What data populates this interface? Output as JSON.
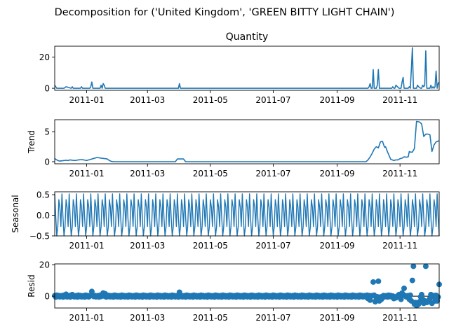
{
  "figure": {
    "suptitle": "Decomposition for ('United Kingdom', 'GREEN BITTY LIGHT CHAIN')",
    "line_color": "#1f77b4"
  },
  "chart_data": [
    {
      "type": "line",
      "title": "Quantity",
      "ylabel": "",
      "xlim": [
        "2010-12-01",
        "2011-12-09"
      ],
      "ylim": [
        -1.3,
        27.0
      ],
      "yticks": [
        0,
        20
      ],
      "xticks": [
        "2011-01",
        "2011-03",
        "2011-05",
        "2011-07",
        "2011-09",
        "2011-11"
      ],
      "series": [
        {
          "x": [
            "2010-12-01",
            "2010-12-03",
            "2010-12-10",
            "2010-12-12",
            "2010-12-17",
            "2010-12-18",
            "2010-12-19",
            "2010-12-26",
            "2010-12-27",
            "2010-12-28",
            "2011-01-04",
            "2011-01-05",
            "2011-01-06",
            "2011-01-07",
            "2011-01-08",
            "2011-01-09",
            "2011-01-14",
            "2011-01-15",
            "2011-01-16",
            "2011-01-17",
            "2011-01-18",
            "2011-01-19",
            "2011-03-31",
            "2011-04-01",
            "2011-04-02",
            "2011-10-01",
            "2011-10-02",
            "2011-10-03",
            "2011-10-04",
            "2011-10-05",
            "2011-10-06",
            "2011-10-07",
            "2011-10-08",
            "2011-10-09",
            "2011-10-10",
            "2011-10-11",
            "2011-10-12",
            "2011-10-14",
            "2011-10-16",
            "2011-10-21",
            "2011-10-24",
            "2011-10-25",
            "2011-10-26",
            "2011-10-27",
            "2011-10-28",
            "2011-10-31",
            "2011-11-01",
            "2011-11-02",
            "2011-11-03",
            "2011-11-04",
            "2011-11-05",
            "2011-11-09",
            "2011-11-10",
            "2011-11-11",
            "2011-11-12",
            "2011-11-13",
            "2011-11-14",
            "2011-11-15",
            "2011-11-16",
            "2011-11-17",
            "2011-11-18",
            "2011-11-19",
            "2011-11-21",
            "2011-11-22",
            "2011-11-23",
            "2011-11-24",
            "2011-11-25",
            "2011-11-26",
            "2011-11-27",
            "2011-11-28",
            "2011-11-29",
            "2011-11-30",
            "2011-12-01",
            "2011-12-02",
            "2011-12-03",
            "2011-12-04",
            "2011-12-05",
            "2011-12-06",
            "2011-12-07",
            "2011-12-08",
            "2011-12-09"
          ],
          "y": [
            2,
            0,
            0,
            1,
            0,
            1,
            0,
            0,
            1,
            0,
            0,
            1,
            4,
            0,
            0,
            0,
            0,
            2,
            0,
            3,
            2,
            0,
            0,
            3,
            0,
            0,
            1,
            3,
            0,
            0,
            12,
            0,
            0,
            0,
            2,
            12,
            0,
            0,
            0,
            0,
            0,
            1,
            0,
            0,
            2,
            0,
            0,
            0,
            4,
            7,
            0,
            0,
            1,
            0,
            12,
            26,
            0,
            0,
            0,
            0,
            2,
            1,
            0,
            0,
            2,
            1,
            2,
            24,
            0,
            0,
            0,
            0,
            2,
            0,
            1,
            0,
            1,
            11,
            0,
            3,
            4
          ]
        }
      ]
    },
    {
      "type": "line",
      "title": "",
      "ylabel": "Trend",
      "xlim": [
        "2010-12-01",
        "2011-12-09"
      ],
      "ylim": [
        -0.35,
        7.0
      ],
      "yticks": [
        0,
        5
      ],
      "xticks": [
        "2011-01",
        "2011-03",
        "2011-05",
        "2011-07",
        "2011-09",
        "2011-11"
      ],
      "series": [
        {
          "x": [
            "2010-12-01",
            "2010-12-02",
            "2010-12-04",
            "2010-12-06",
            "2010-12-08",
            "2010-12-10",
            "2010-12-12",
            "2010-12-14",
            "2010-12-16",
            "2010-12-18",
            "2010-12-21",
            "2010-12-24",
            "2010-12-27",
            "2010-12-29",
            "2011-01-01",
            "2011-01-03",
            "2011-01-04",
            "2011-01-08",
            "2011-01-11",
            "2011-01-13",
            "2011-01-15",
            "2011-01-17",
            "2011-01-19",
            "2011-01-21",
            "2011-01-23",
            "2011-01-25",
            "2011-01-27",
            "2011-01-29",
            "2011-03-28",
            "2011-03-30",
            "2011-04-03",
            "2011-04-05",
            "2011-04-07",
            "2011-09-29",
            "2011-10-01",
            "2011-10-03",
            "2011-10-05",
            "2011-10-07",
            "2011-10-09",
            "2011-10-11",
            "2011-10-13",
            "2011-10-15",
            "2011-10-17",
            "2011-10-18",
            "2011-10-20",
            "2011-10-23",
            "2011-10-26",
            "2011-10-28",
            "2011-10-30",
            "2011-11-01",
            "2011-11-03",
            "2011-11-05",
            "2011-11-07",
            "2011-11-09",
            "2011-11-10",
            "2011-11-11",
            "2011-11-13",
            "2011-11-15",
            "2011-11-17",
            "2011-11-18",
            "2011-11-20",
            "2011-11-22",
            "2011-11-24",
            "2011-11-26",
            "2011-11-27",
            "2011-11-28",
            "2011-11-30",
            "2011-12-02",
            "2011-12-04",
            "2011-12-06",
            "2011-12-09"
          ],
          "y": [
            0.55,
            0.4,
            0.2,
            0.1,
            0.15,
            0.2,
            0.25,
            0.2,
            0.3,
            0.25,
            0.2,
            0.3,
            0.35,
            0.3,
            0.2,
            0.3,
            0.35,
            0.55,
            0.7,
            0.65,
            0.6,
            0.55,
            0.5,
            0.45,
            0.2,
            0.05,
            0,
            0,
            0,
            0.45,
            0.45,
            0.45,
            0,
            0,
            0.3,
            0.8,
            1.4,
            2.1,
            2.5,
            2.3,
            3.3,
            3.4,
            2.4,
            2.5,
            1.6,
            0.4,
            0.2,
            0.3,
            0.3,
            0.5,
            0.6,
            0.8,
            0.75,
            0.8,
            1.7,
            1.6,
            1.6,
            2.2,
            6.7,
            6.7,
            6.6,
            6.3,
            4.2,
            4.6,
            4.6,
            4.6,
            4.5,
            1.7,
            2.8,
            3.3,
            3.5
          ]
        }
      ]
    },
    {
      "type": "line",
      "title": "",
      "ylabel": "Seasonal",
      "xlim": [
        "2010-12-01",
        "2011-12-09"
      ],
      "ylim": [
        -0.5,
        0.57
      ],
      "yticks": [
        -0.5,
        0.0,
        0.5
      ],
      "ytick_labels": [
        "−0.5",
        "0.0",
        "0.5"
      ],
      "xticks": [
        "2011-01",
        "2011-03",
        "2011-05",
        "2011-07",
        "2011-09",
        "2011-11"
      ],
      "period_days": 7,
      "series": [
        {
          "weekly_pattern": [
            0.52,
            -0.05,
            -0.5,
            -0.28,
            0.38,
            0.2,
            -0.27
          ]
        }
      ]
    },
    {
      "type": "scatter",
      "title": "",
      "ylabel": "Resid",
      "xlim": [
        "2010-12-01",
        "2011-12-09"
      ],
      "ylim": [
        -7.5,
        20.5
      ],
      "yticks": [
        0,
        20
      ],
      "xticks": [
        "2011-01",
        "2011-03",
        "2011-05",
        "2011-07",
        "2011-09",
        "2011-11"
      ],
      "zero_line_color": "#000000",
      "series": [
        {
          "baseline_pattern": [
            0.3,
            -0.5,
            0.6,
            -0.2,
            0.4,
            -0.4,
            0.1
          ],
          "outliers": {
            "x": [
              "2010-12-12",
              "2010-12-18",
              "2011-01-06",
              "2011-01-17",
              "2011-01-19",
              "2011-04-01",
              "2011-10-01",
              "2011-10-03",
              "2011-10-06",
              "2011-10-08",
              "2011-10-09",
              "2011-10-11",
              "2011-10-12",
              "2011-10-14",
              "2011-10-26",
              "2011-10-28",
              "2011-10-31",
              "2011-11-02",
              "2011-11-03",
              "2011-11-05",
              "2011-11-10",
              "2011-11-12",
              "2011-11-13",
              "2011-11-14",
              "2011-11-15",
              "2011-11-16",
              "2011-11-17",
              "2011-11-18",
              "2011-11-19",
              "2011-11-20",
              "2011-11-22",
              "2011-11-23",
              "2011-11-24",
              "2011-11-25",
              "2011-11-26",
              "2011-11-27",
              "2011-11-28",
              "2011-11-29",
              "2011-11-30",
              "2011-12-01",
              "2011-12-02",
              "2011-12-05",
              "2011-12-06",
              "2011-12-07",
              "2011-12-09"
            ],
            "y": [
              1.2,
              1.0,
              3.0,
              2.0,
              1.5,
              2.5,
              -1.5,
              -2.5,
              9.0,
              -3.5,
              -2.0,
              9.5,
              -3.0,
              -2.0,
              -1.5,
              -1.0,
              1.0,
              -2.0,
              2.0,
              5.0,
              -2.0,
              -3.0,
              10.0,
              19.0,
              -5.0,
              -4.0,
              -6.0,
              -5.5,
              -5.0,
              -3.5,
              1.0,
              -2.0,
              -4.5,
              -3.0,
              19.0,
              -4.0,
              -3.5,
              -2.5,
              -1.5,
              1.0,
              -4.5,
              -3.0,
              0.5,
              -3.0,
              7.5
            ]
          }
        }
      ]
    }
  ]
}
